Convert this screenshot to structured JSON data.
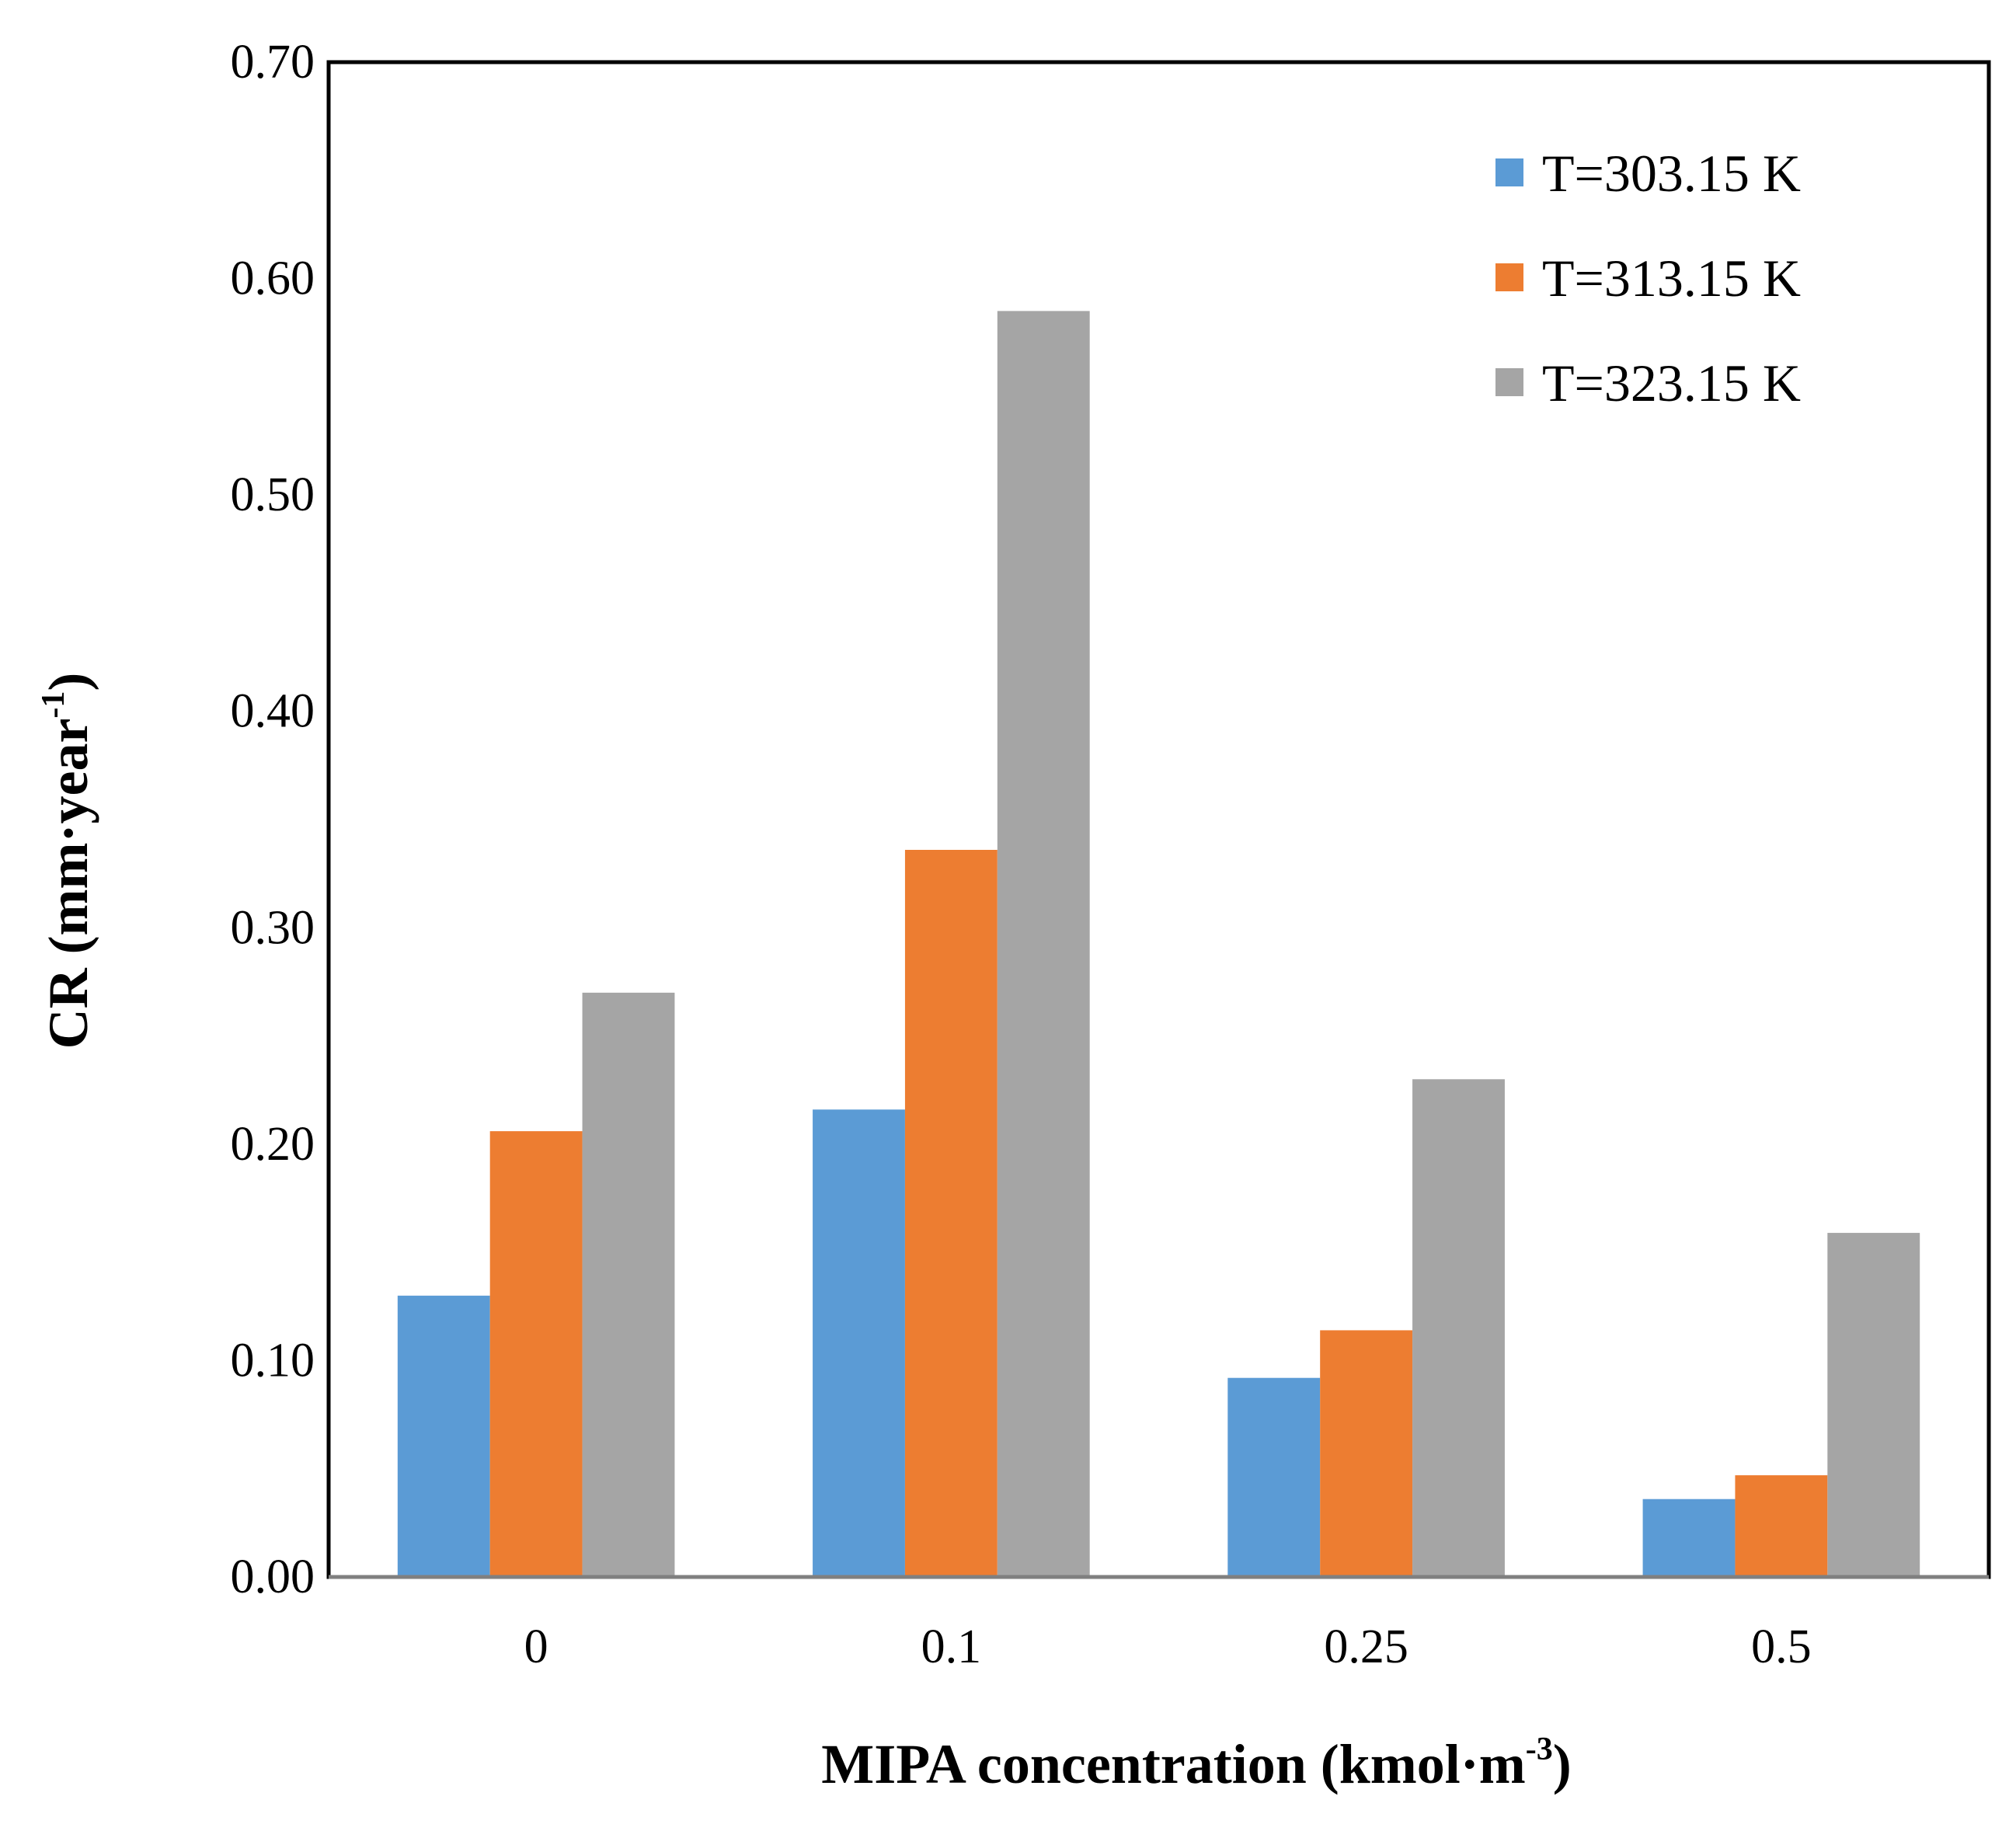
{
  "chart_data": {
    "type": "bar",
    "title": "",
    "xlabel": "MIPA concentration (kmol·m",
    "xlabel_sup": "-3",
    "xlabel_close": ")",
    "ylabel": "CR (mm·year",
    "ylabel_sup": "-1",
    "ylabel_close": ")",
    "categories": [
      "0",
      "0.1",
      "0.25",
      "0.5"
    ],
    "ylim": [
      0,
      0.7
    ],
    "yticks": [
      0.0,
      0.1,
      0.2,
      0.3,
      0.4,
      0.5,
      0.6,
      0.7
    ],
    "ytick_labels": [
      "0.00",
      "0.10",
      "0.20",
      "0.30",
      "0.40",
      "0.50",
      "0.60",
      "0.70"
    ],
    "grid": false,
    "legend_position": "top-right",
    "series": [
      {
        "name": "T=303.15 K",
        "color": "#5b9bd5",
        "values": [
          0.13,
          0.216,
          0.092,
          0.036
        ]
      },
      {
        "name": "T=313.15 K",
        "color": "#ed7d31",
        "values": [
          0.206,
          0.336,
          0.114,
          0.047
        ]
      },
      {
        "name": "T=323.15 K",
        "color": "#a5a5a5",
        "values": [
          0.27,
          0.585,
          0.23,
          0.159
        ]
      }
    ]
  }
}
